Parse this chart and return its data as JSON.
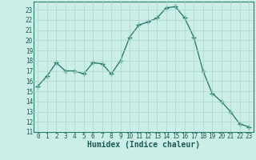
{
  "x": [
    0,
    1,
    2,
    3,
    4,
    5,
    6,
    7,
    8,
    9,
    10,
    11,
    12,
    13,
    14,
    15,
    16,
    17,
    18,
    19,
    20,
    21,
    22,
    23
  ],
  "y": [
    15.5,
    16.5,
    17.8,
    17.0,
    17.0,
    16.7,
    17.8,
    17.7,
    16.7,
    18.0,
    20.3,
    21.5,
    21.8,
    22.2,
    23.2,
    23.3,
    22.2,
    20.3,
    17.0,
    14.8,
    14.0,
    13.0,
    11.8,
    11.5
  ],
  "line_color": "#2d7d6e",
  "marker_color": "#2d7d6e",
  "bg_color": "#cceee8",
  "grid_color": "#aad4cc",
  "xlabel": "Humidex (Indice chaleur)",
  "xlim": [
    -0.5,
    23.5
  ],
  "ylim": [
    11,
    23.8
  ],
  "yticks": [
    11,
    12,
    13,
    14,
    15,
    16,
    17,
    18,
    19,
    20,
    21,
    22,
    23
  ],
  "xticks": [
    0,
    1,
    2,
    3,
    4,
    5,
    6,
    7,
    8,
    9,
    10,
    11,
    12,
    13,
    14,
    15,
    16,
    17,
    18,
    19,
    20,
    21,
    22,
    23
  ],
  "tick_fontsize": 5.5,
  "xlabel_fontsize": 7.0,
  "marker_size": 2.5,
  "line_width": 1.0
}
